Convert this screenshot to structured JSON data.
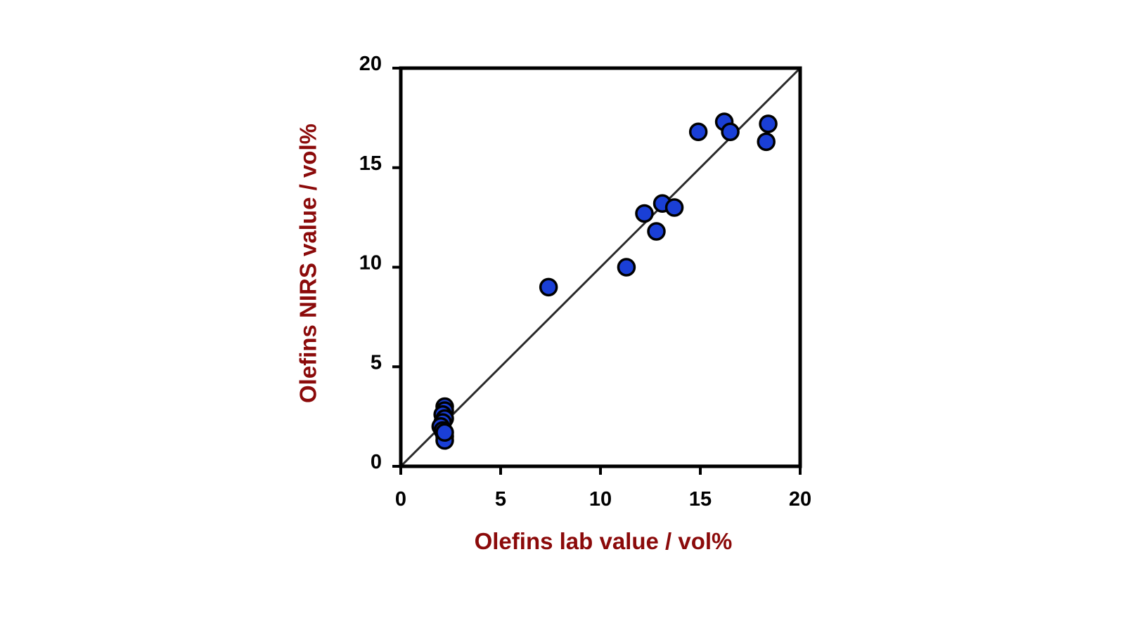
{
  "chart_data": {
    "type": "scatter",
    "title": "",
    "xlabel": "Olefins lab value / vol%",
    "ylabel": "Olefins NIRS value / vol%",
    "xlim": [
      0,
      20
    ],
    "ylim": [
      0,
      20
    ],
    "xticks": [
      "0",
      "5",
      "10",
      "15",
      "20"
    ],
    "yticks": [
      "0",
      "5",
      "10",
      "15",
      "20"
    ],
    "grid": false,
    "legend": "none",
    "reference_line": {
      "type": "identity",
      "from": [
        0,
        0
      ],
      "to": [
        20,
        20
      ]
    },
    "series": [
      {
        "points": [
          [
            2.2,
            3.0
          ],
          [
            2.2,
            2.8
          ],
          [
            2.1,
            2.6
          ],
          [
            2.2,
            2.4
          ],
          [
            2.1,
            2.2
          ],
          [
            2.0,
            2.0
          ],
          [
            2.1,
            1.8
          ],
          [
            2.2,
            1.5
          ],
          [
            2.2,
            1.3
          ],
          [
            2.2,
            1.7
          ],
          [
            7.4,
            9.0
          ],
          [
            11.3,
            10.0
          ],
          [
            12.2,
            12.7
          ],
          [
            12.8,
            11.8
          ],
          [
            13.1,
            13.2
          ],
          [
            13.7,
            13.0
          ],
          [
            14.9,
            16.8
          ],
          [
            16.2,
            17.3
          ],
          [
            16.5,
            16.8
          ],
          [
            18.3,
            16.3
          ],
          [
            18.4,
            17.2
          ]
        ]
      }
    ],
    "colors": {
      "marker_fill": "#1a3fd6",
      "marker_stroke": "#000000",
      "axis": "#000000",
      "reference_line": "#2a2a2a",
      "axis_label": "#8b0a0a"
    }
  }
}
